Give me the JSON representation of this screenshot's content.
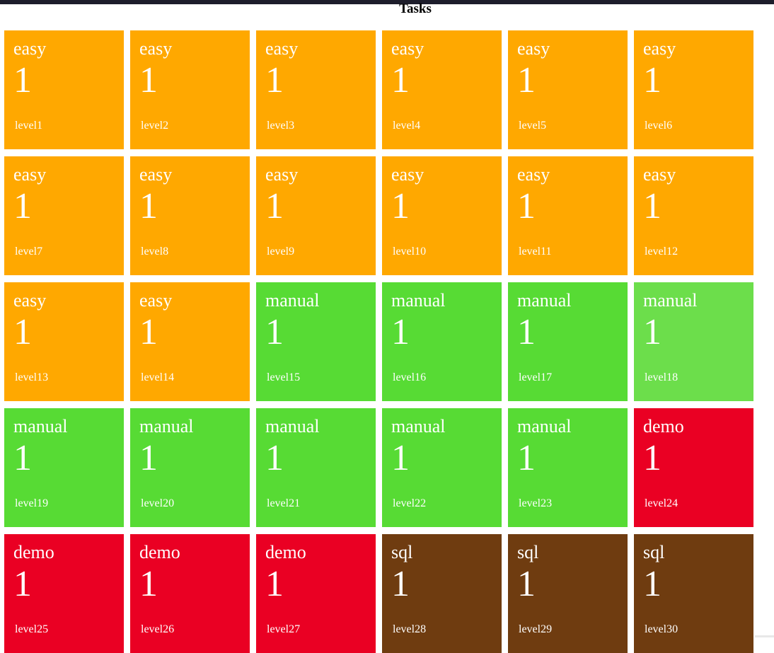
{
  "page": {
    "title": "Tasks"
  },
  "colors": {
    "easy": "#ffa800",
    "manual": "#57db34",
    "manual_highlight": "#6cde4b",
    "demo": "#ea0023",
    "sql": "#6f3c10",
    "topbar": "#1d1d2b"
  },
  "tiles": [
    {
      "category": "easy",
      "count": "1",
      "level": "level1",
      "color": "#ffa800"
    },
    {
      "category": "easy",
      "count": "1",
      "level": "level2",
      "color": "#ffa800"
    },
    {
      "category": "easy",
      "count": "1",
      "level": "level3",
      "color": "#ffa800"
    },
    {
      "category": "easy",
      "count": "1",
      "level": "level4",
      "color": "#ffa800"
    },
    {
      "category": "easy",
      "count": "1",
      "level": "level5",
      "color": "#ffa800"
    },
    {
      "category": "easy",
      "count": "1",
      "level": "level6",
      "color": "#ffa800"
    },
    {
      "category": "easy",
      "count": "1",
      "level": "level7",
      "color": "#ffa800"
    },
    {
      "category": "easy",
      "count": "1",
      "level": "level8",
      "color": "#ffa800"
    },
    {
      "category": "easy",
      "count": "1",
      "level": "level9",
      "color": "#ffa800"
    },
    {
      "category": "easy",
      "count": "1",
      "level": "level10",
      "color": "#ffa800"
    },
    {
      "category": "easy",
      "count": "1",
      "level": "level11",
      "color": "#ffa800"
    },
    {
      "category": "easy",
      "count": "1",
      "level": "level12",
      "color": "#ffa800"
    },
    {
      "category": "easy",
      "count": "1",
      "level": "level13",
      "color": "#ffa800"
    },
    {
      "category": "easy",
      "count": "1",
      "level": "level14",
      "color": "#ffa800"
    },
    {
      "category": "manual",
      "count": "1",
      "level": "level15",
      "color": "#57db34"
    },
    {
      "category": "manual",
      "count": "1",
      "level": "level16",
      "color": "#57db34"
    },
    {
      "category": "manual",
      "count": "1",
      "level": "level17",
      "color": "#57db34"
    },
    {
      "category": "manual",
      "count": "1",
      "level": "level18",
      "color": "#6cde4b"
    },
    {
      "category": "manual",
      "count": "1",
      "level": "level19",
      "color": "#57db34"
    },
    {
      "category": "manual",
      "count": "1",
      "level": "level20",
      "color": "#57db34"
    },
    {
      "category": "manual",
      "count": "1",
      "level": "level21",
      "color": "#57db34"
    },
    {
      "category": "manual",
      "count": "1",
      "level": "level22",
      "color": "#57db34"
    },
    {
      "category": "manual",
      "count": "1",
      "level": "level23",
      "color": "#57db34"
    },
    {
      "category": "demo",
      "count": "1",
      "level": "level24",
      "color": "#ea0023"
    },
    {
      "category": "demo",
      "count": "1",
      "level": "level25",
      "color": "#ea0023"
    },
    {
      "category": "demo",
      "count": "1",
      "level": "level26",
      "color": "#ea0023"
    },
    {
      "category": "demo",
      "count": "1",
      "level": "level27",
      "color": "#ea0023"
    },
    {
      "category": "sql",
      "count": "1",
      "level": "level28",
      "color": "#6f3c10"
    },
    {
      "category": "sql",
      "count": "1",
      "level": "level29",
      "color": "#6f3c10"
    },
    {
      "category": "sql",
      "count": "1",
      "level": "level30",
      "color": "#6f3c10"
    }
  ]
}
